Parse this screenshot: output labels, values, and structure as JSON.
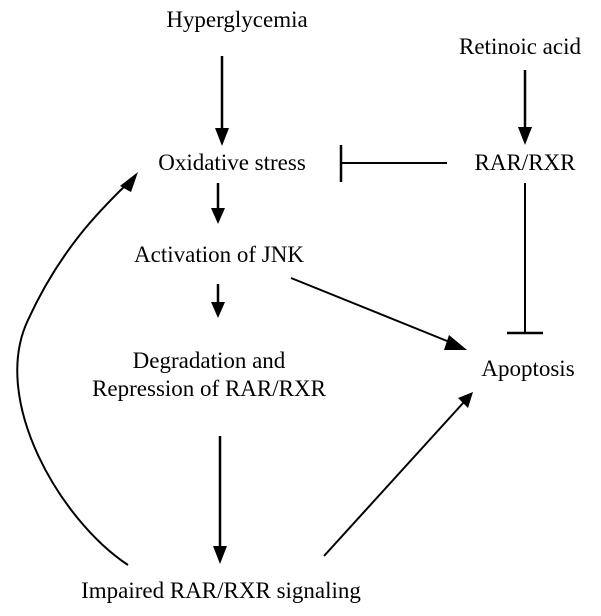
{
  "nodes": {
    "hyperglycemia": "Hyperglycemia",
    "retinoic_acid": "Retinoic acid",
    "oxidative_stress": "Oxidative stress",
    "rar_rxr": "RAR/RXR",
    "activation_jnk": "Activation of JNK",
    "degradation_line1": "Degradation and",
    "degradation_line2": "Repression of RAR/RXR",
    "apoptosis": "Apoptosis",
    "impaired_signaling": "Impaired RAR/RXR signaling"
  },
  "edges": [
    {
      "from": "hyperglycemia",
      "to": "oxidative_stress",
      "kind": "activation"
    },
    {
      "from": "retinoic_acid",
      "to": "rar_rxr",
      "kind": "activation"
    },
    {
      "from": "rar_rxr",
      "to": "oxidative_stress",
      "kind": "inhibition"
    },
    {
      "from": "oxidative_stress",
      "to": "activation_jnk",
      "kind": "activation"
    },
    {
      "from": "activation_jnk",
      "to": "degradation",
      "kind": "activation"
    },
    {
      "from": "activation_jnk",
      "to": "apoptosis",
      "kind": "activation"
    },
    {
      "from": "rar_rxr",
      "to": "apoptosis",
      "kind": "inhibition"
    },
    {
      "from": "degradation",
      "to": "impaired_signaling",
      "kind": "activation"
    },
    {
      "from": "impaired_signaling",
      "to": "apoptosis",
      "kind": "activation"
    },
    {
      "from": "impaired_signaling",
      "to": "oxidative_stress",
      "kind": "activation"
    }
  ],
  "colors": {
    "ink": "#000000",
    "background": "#ffffff"
  }
}
